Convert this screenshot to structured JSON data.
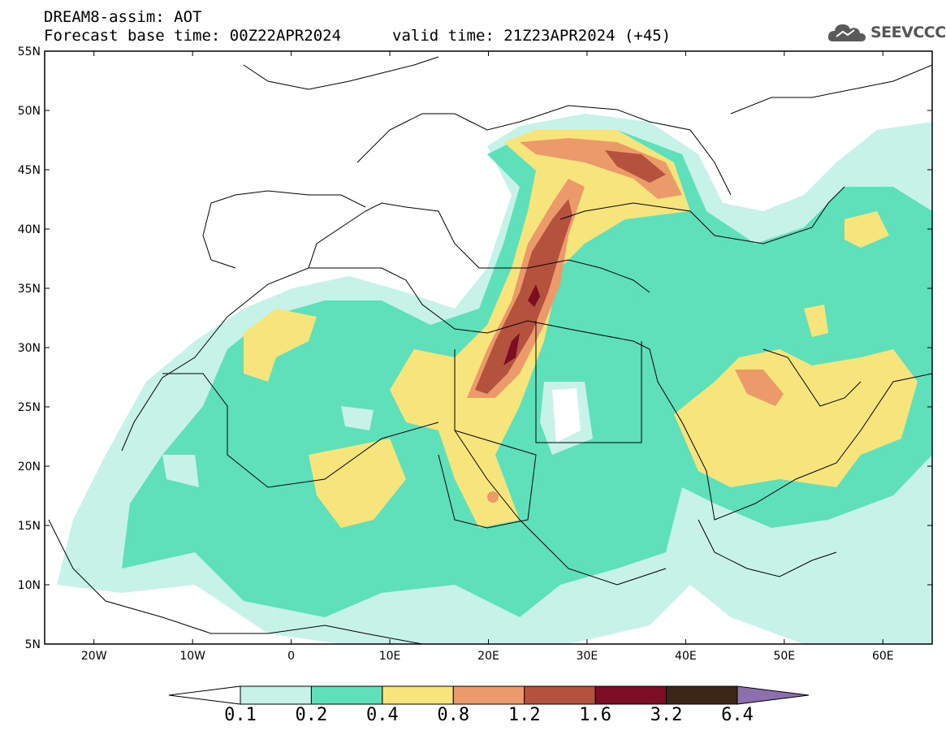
{
  "header": {
    "title_line1": "DREAM8-assim: AOT",
    "title_line2": "Forecast base time: 00Z22APR2024",
    "valid_time": "valid time: 21Z23APR2024 (+45)"
  },
  "logo": {
    "text": "SEEVCCC",
    "icon": "cloud-icon"
  },
  "map": {
    "lat_labels": [
      "55N",
      "50N",
      "45N",
      "40N",
      "35N",
      "30N",
      "25N",
      "20N",
      "15N",
      "10N",
      "5N"
    ],
    "lon_labels": [
      "20W",
      "10W",
      "0",
      "10E",
      "20E",
      "30E",
      "40E",
      "50E",
      "60E"
    ],
    "lat_range": [
      5,
      55
    ],
    "lon_range": [
      -25,
      65
    ]
  },
  "colorbar": {
    "labels": [
      "0.1",
      "0.2",
      "0.4",
      "0.8",
      "1.2",
      "1.6",
      "3.2",
      "6.4"
    ],
    "colors": [
      "#ffffff",
      "#c6f2e8",
      "#5ee0bb",
      "#f7e47a",
      "#ec9a6a",
      "#b4523e",
      "#7d0d22",
      "#3b2618",
      "#8d6fae"
    ]
  }
}
